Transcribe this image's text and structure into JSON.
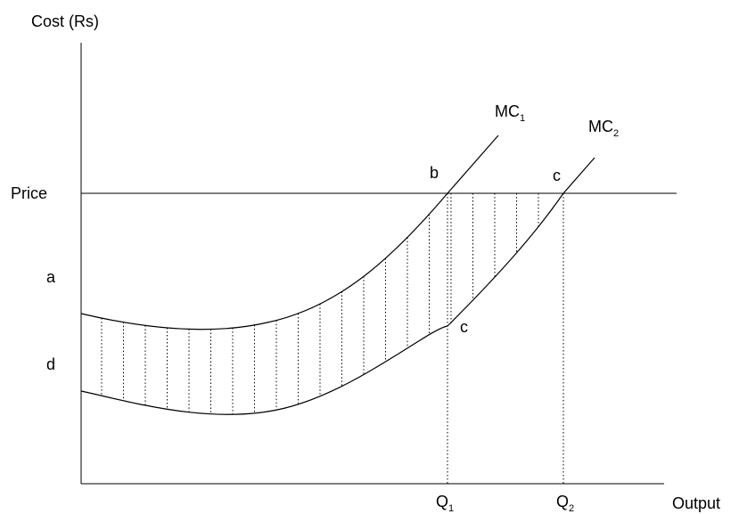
{
  "axes": {
    "y_label": "Cost (Rs)",
    "x_label": "Output"
  },
  "labels": {
    "price": "Price",
    "a": "a",
    "d": "d",
    "b": "b",
    "c_upper": "c",
    "c_lower": "c"
  },
  "curves": {
    "mc1": {
      "base": "MC",
      "sub": "1"
    },
    "mc2": {
      "base": "MC",
      "sub": "2"
    }
  },
  "quantities": {
    "q1": {
      "base": "Q",
      "sub": "1"
    },
    "q2": {
      "base": "Q",
      "sub": "2"
    }
  }
}
